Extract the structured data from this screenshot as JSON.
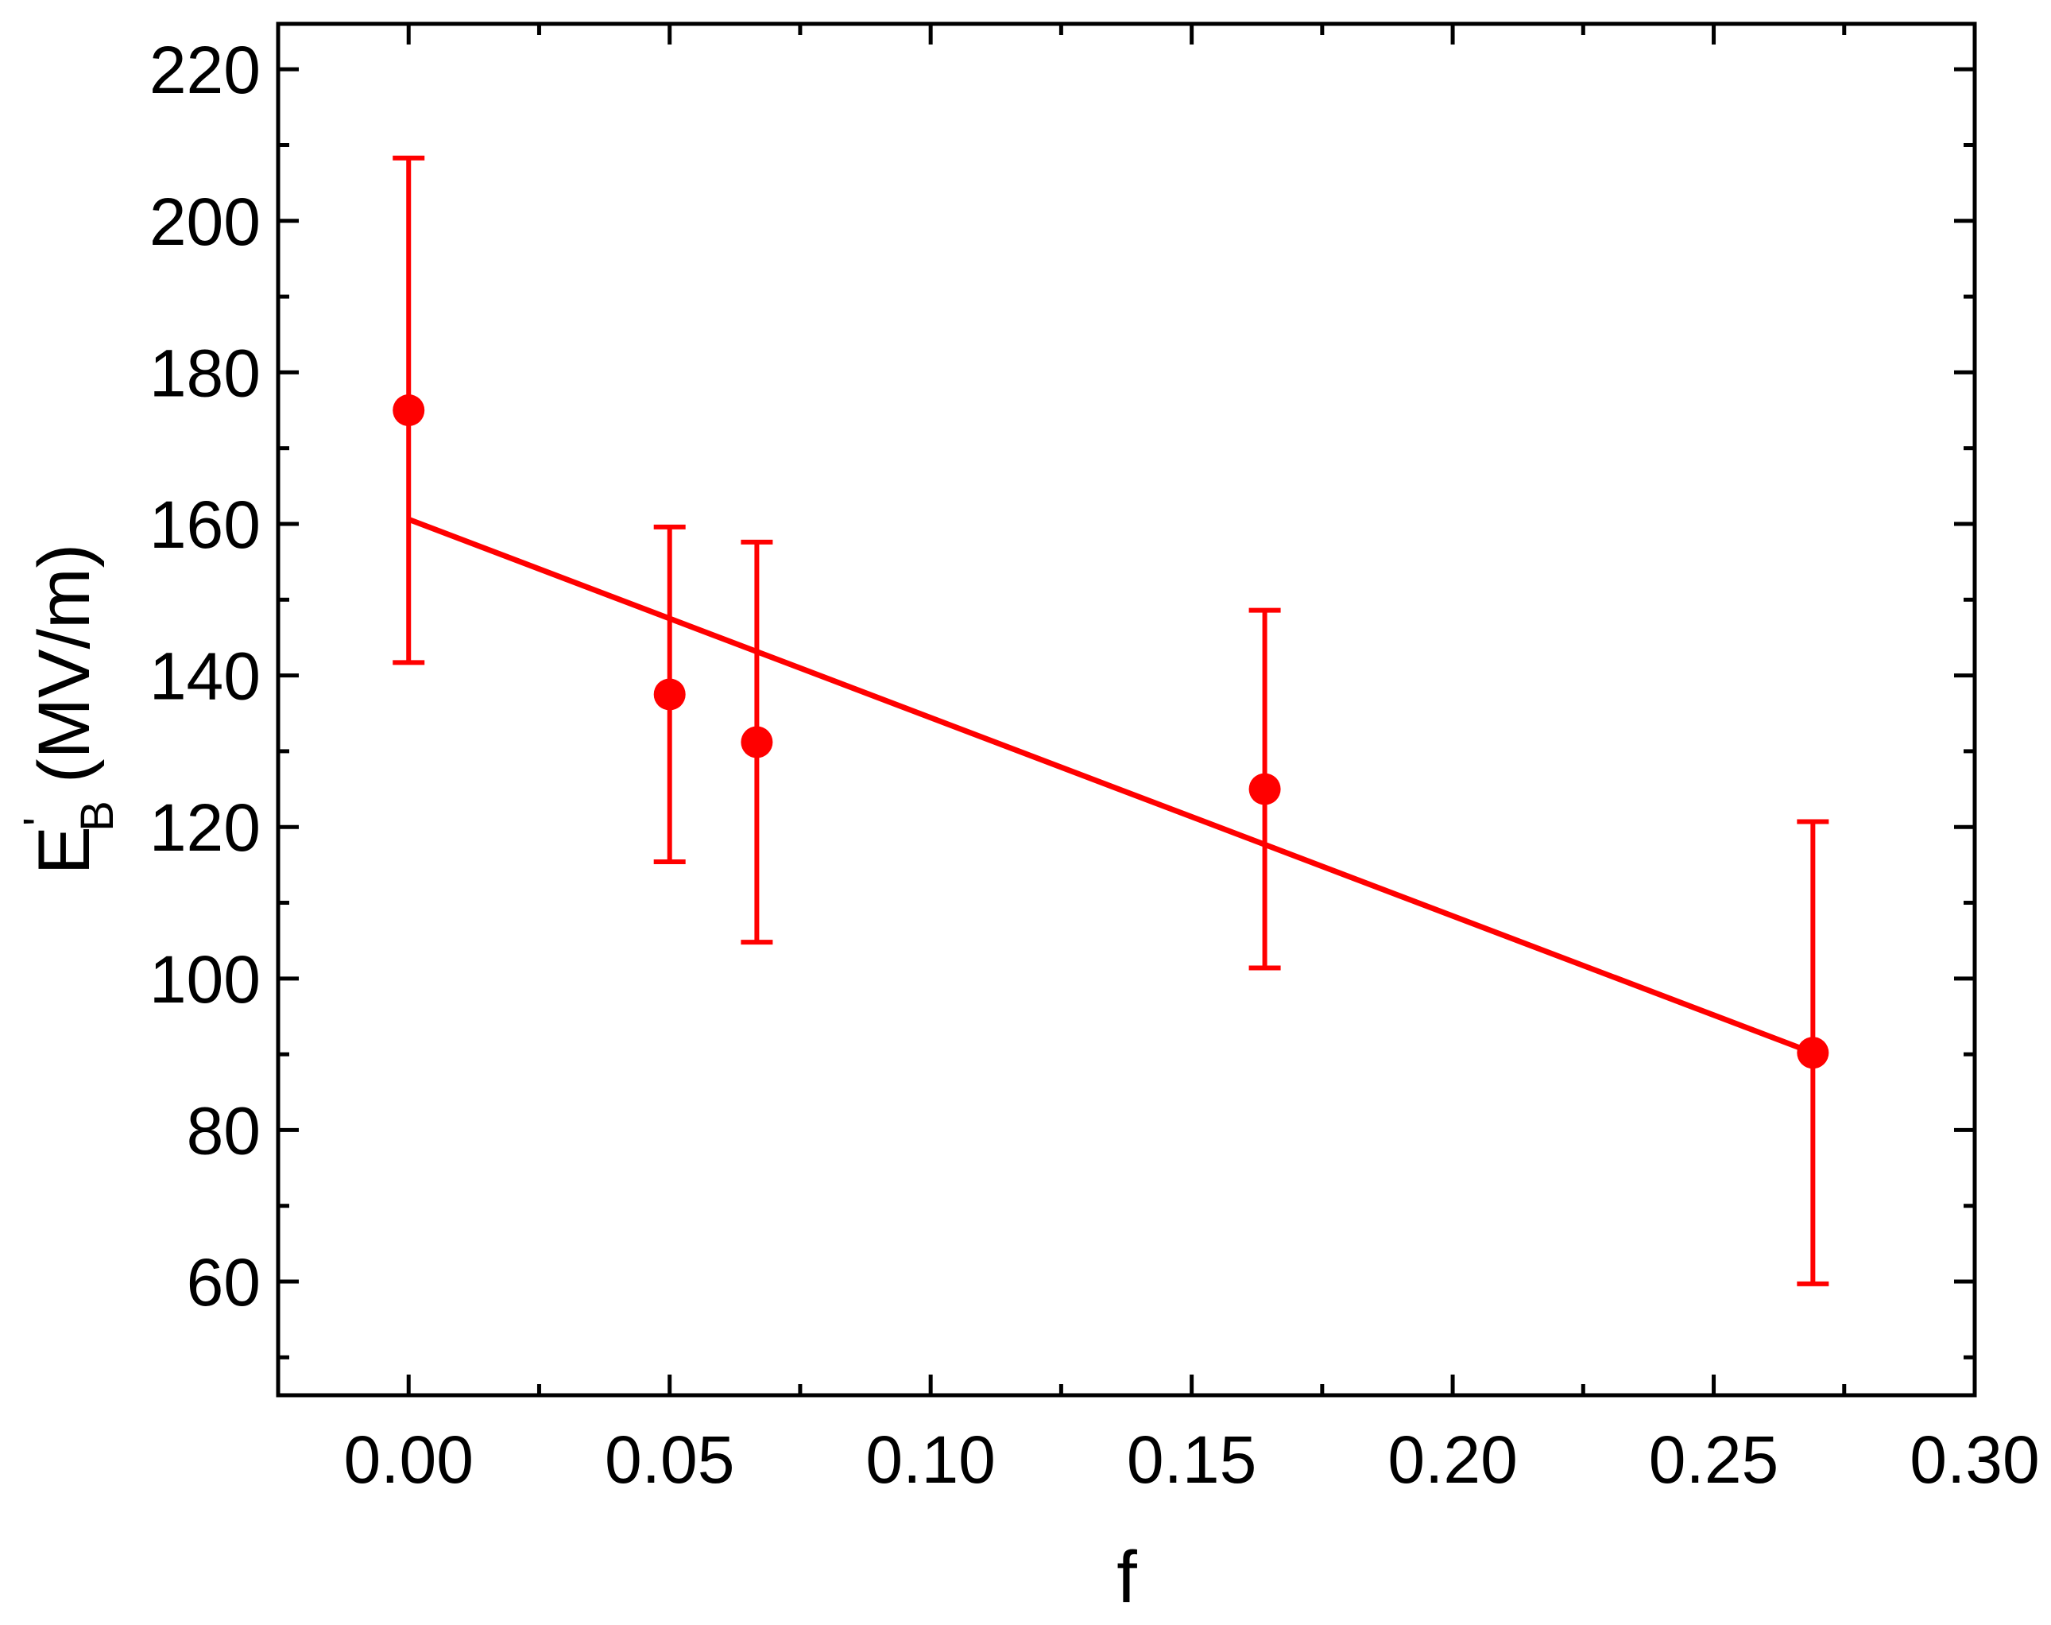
{
  "chart_data": {
    "type": "scatter",
    "x_label": "f",
    "y_label": {
      "main": "E",
      "sup": "'",
      "sub": "B",
      "unit": "(MV/m)"
    },
    "xlim": [
      -0.025,
      0.3
    ],
    "xticks": [
      {
        "value": 0,
        "label": "0.00"
      },
      {
        "value": 0.05,
        "label": "0.05"
      },
      {
        "value": 0.1,
        "label": "0.10"
      },
      {
        "value": 0.15,
        "label": "0.15"
      },
      {
        "value": 0.2,
        "label": "0.20"
      },
      {
        "value": 0.25,
        "label": "0.25"
      },
      {
        "value": 0.3,
        "label": "0.30"
      }
    ],
    "ylim": [
      45,
      226
    ],
    "yticks": [
      60,
      80,
      100,
      120,
      140,
      160,
      180,
      200,
      220
    ],
    "minor_ticks": true,
    "mirror_ticks": true,
    "series": [
      {
        "type": "scatter",
        "color": "#ff0000",
        "x": [
          0,
          0.05,
          0.0667,
          0.164,
          0.269
        ],
        "values": [
          175,
          137.5,
          131.2,
          125,
          90.2
        ],
        "errors": [
          33.3,
          22.1,
          26.4,
          23.6,
          30.5
        ]
      },
      {
        "type": "line",
        "color": "#ff0000",
        "x": [
          0,
          0.269
        ],
        "values": [
          160.6,
          90.2
        ]
      }
    ]
  }
}
